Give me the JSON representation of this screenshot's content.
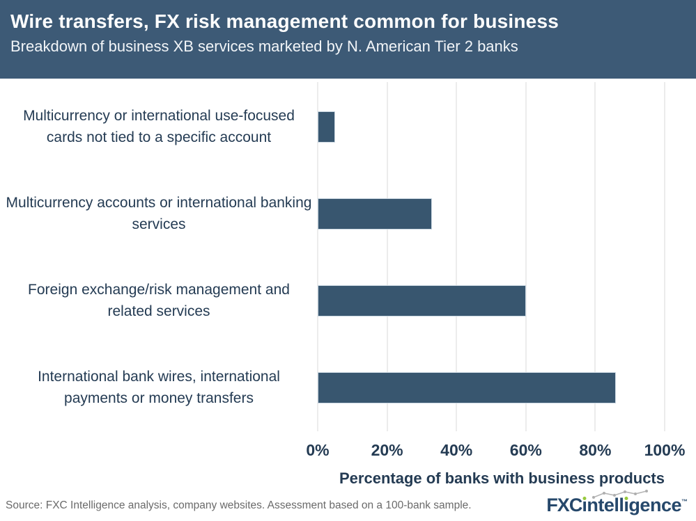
{
  "header": {
    "title": "Wire transfers, FX risk management common for business",
    "subtitle": "Breakdown of business XB services marketed by N. American Tier 2 banks"
  },
  "chart_data": {
    "type": "bar",
    "orientation": "horizontal",
    "categories": [
      "Multicurrency or international use-focused cards not tied to a specific account",
      "Multicurrency accounts or international banking services",
      "Foreign exchange/risk management and related services",
      "International bank wires, international payments or money transfers"
    ],
    "values": [
      5,
      33,
      60,
      86
    ],
    "xlabel": "Percentage of banks with business products",
    "xticks": [
      "0%",
      "20%",
      "40%",
      "60%",
      "80%",
      "100%"
    ],
    "xtick_values": [
      0,
      20,
      40,
      60,
      80,
      100
    ],
    "xlim": [
      0,
      100
    ],
    "grid": "vertical-only",
    "legend": "none"
  },
  "footer": {
    "source": "Source: FXC Intelligence analysis, company websites. Assessment based on a 100-bank sample.",
    "logo": {
      "bold": "FXC",
      "rest": "intelligence",
      "tm": "™"
    }
  },
  "colors": {
    "header_bg": "#3D5A76",
    "bar": "#38566F",
    "bar_border": "#CBD8E2",
    "grid": "#ECECEC",
    "text_navy": "#243B53",
    "footer_gray": "#6A6A6A",
    "logo_navy": "#26486B",
    "logo_green": "#97C93D",
    "spark_gray": "#B5B5B5"
  }
}
